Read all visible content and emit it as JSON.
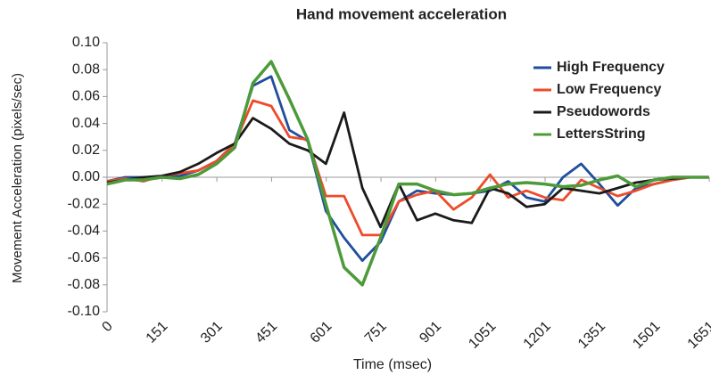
{
  "chart_data": {
    "type": "line",
    "title": "Hand movement acceleration",
    "x_label": "Time (msec)",
    "y_label": "Movement Acceleration (pixels/sec)",
    "x": [
      0,
      50,
      100,
      150,
      200,
      250,
      300,
      350,
      400,
      450,
      500,
      550,
      600,
      650,
      700,
      750,
      800,
      850,
      900,
      950,
      1000,
      1050,
      1100,
      1150,
      1200,
      1250,
      1300,
      1350,
      1400,
      1450,
      1500,
      1550,
      1600,
      1650
    ],
    "series": [
      {
        "name": "High Frequency",
        "color": "#1f4e9c",
        "values": [
          -0.003,
          0,
          0,
          0,
          0.001,
          0.005,
          0.012,
          0.025,
          0.068,
          0.075,
          0.035,
          0.027,
          -0.025,
          -0.045,
          -0.062,
          -0.048,
          -0.018,
          -0.01,
          -0.012,
          -0.013,
          -0.012,
          -0.01,
          -0.003,
          -0.015,
          -0.018,
          0,
          0.01,
          -0.005,
          -0.021,
          -0.008,
          -0.005,
          -0.002,
          0,
          0
        ]
      },
      {
        "name": "Low Frequency",
        "color": "#ee4b2b",
        "values": [
          -0.003,
          -0.001,
          -0.003,
          0.001,
          0.003,
          0.005,
          0.012,
          0.025,
          0.057,
          0.053,
          0.03,
          0.028,
          -0.014,
          -0.014,
          -0.043,
          -0.043,
          -0.018,
          -0.013,
          -0.01,
          -0.024,
          -0.015,
          0.002,
          -0.015,
          -0.01,
          -0.015,
          -0.017,
          -0.002,
          -0.008,
          -0.014,
          -0.01,
          -0.005,
          -0.002,
          0,
          0
        ]
      },
      {
        "name": "Pseudowords",
        "color": "#1a1a1a",
        "values": [
          -0.004,
          -0.002,
          0,
          0.001,
          0.004,
          0.01,
          0.018,
          0.025,
          0.044,
          0.036,
          0.025,
          0.02,
          0.01,
          0.048,
          -0.008,
          -0.037,
          -0.005,
          -0.032,
          -0.027,
          -0.032,
          -0.034,
          -0.008,
          -0.012,
          -0.022,
          -0.02,
          -0.008,
          -0.01,
          -0.012,
          -0.008,
          -0.004,
          -0.002,
          -0.001,
          0,
          0
        ]
      },
      {
        "name": "LettersString",
        "color": "#4c9a3a",
        "values": [
          -0.005,
          -0.002,
          -0.002,
          0,
          -0.001,
          0.002,
          0.01,
          0.022,
          0.07,
          0.086,
          0.058,
          0.028,
          -0.02,
          -0.067,
          -0.08,
          -0.045,
          -0.005,
          -0.005,
          -0.01,
          -0.013,
          -0.012,
          -0.008,
          -0.005,
          -0.004,
          -0.005,
          -0.007,
          -0.006,
          -0.002,
          0.001,
          -0.007,
          -0.002,
          0,
          0,
          0
        ]
      }
    ],
    "xlim": [
      0,
      1651
    ],
    "xticks": [
      0,
      151,
      301,
      451,
      601,
      751,
      901,
      1051,
      1201,
      1351,
      1501,
      1651
    ],
    "ylim": [
      -0.1,
      0.1
    ],
    "yticks": [
      {
        "value": -0.1,
        "label": "-0.10"
      },
      -0.08,
      -0.06,
      -0.04,
      -0.02,
      {
        "value": 0,
        "label": "0.00"
      },
      0.02,
      0.04,
      0.06,
      0.08,
      {
        "value": 0.1,
        "label": "0.10"
      }
    ],
    "grid": false,
    "legend": "upper right"
  }
}
